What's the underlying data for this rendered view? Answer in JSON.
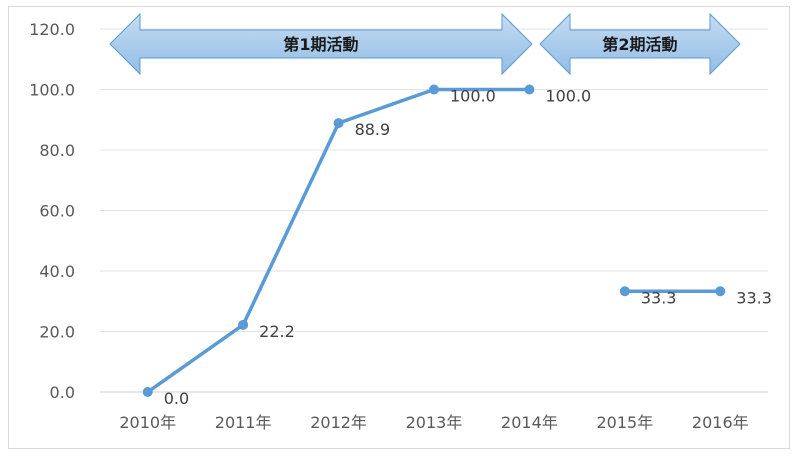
{
  "chart_data": {
    "type": "line",
    "categories": [
      "2010年",
      "2011年",
      "2012年",
      "2013年",
      "2014年",
      "2015年",
      "2016年"
    ],
    "series": [
      {
        "values": [
          0.0,
          22.2,
          88.9,
          100.0,
          100.0,
          null,
          null
        ],
        "labels": [
          "0.0",
          "22.2",
          "88.9",
          "100.0",
          "100.0",
          "",
          ""
        ]
      },
      {
        "values": [
          null,
          null,
          null,
          null,
          null,
          33.3,
          33.3
        ],
        "labels": [
          "",
          "",
          "",
          "",
          "",
          "33.3",
          "33.3"
        ]
      }
    ],
    "yticks": [
      "0.0",
      "20.0",
      "40.0",
      "60.0",
      "80.0",
      "100.0",
      "120.0"
    ],
    "ylim": [
      0,
      120
    ],
    "grid": true,
    "line_color": "#5b9bd5",
    "periods": [
      {
        "label": "第1期活動",
        "from": "2010年",
        "to": "2014年"
      },
      {
        "label": "第2期活動",
        "from": "2015年",
        "to": "2016年"
      }
    ],
    "arrow_color": "#9dc3e6"
  }
}
